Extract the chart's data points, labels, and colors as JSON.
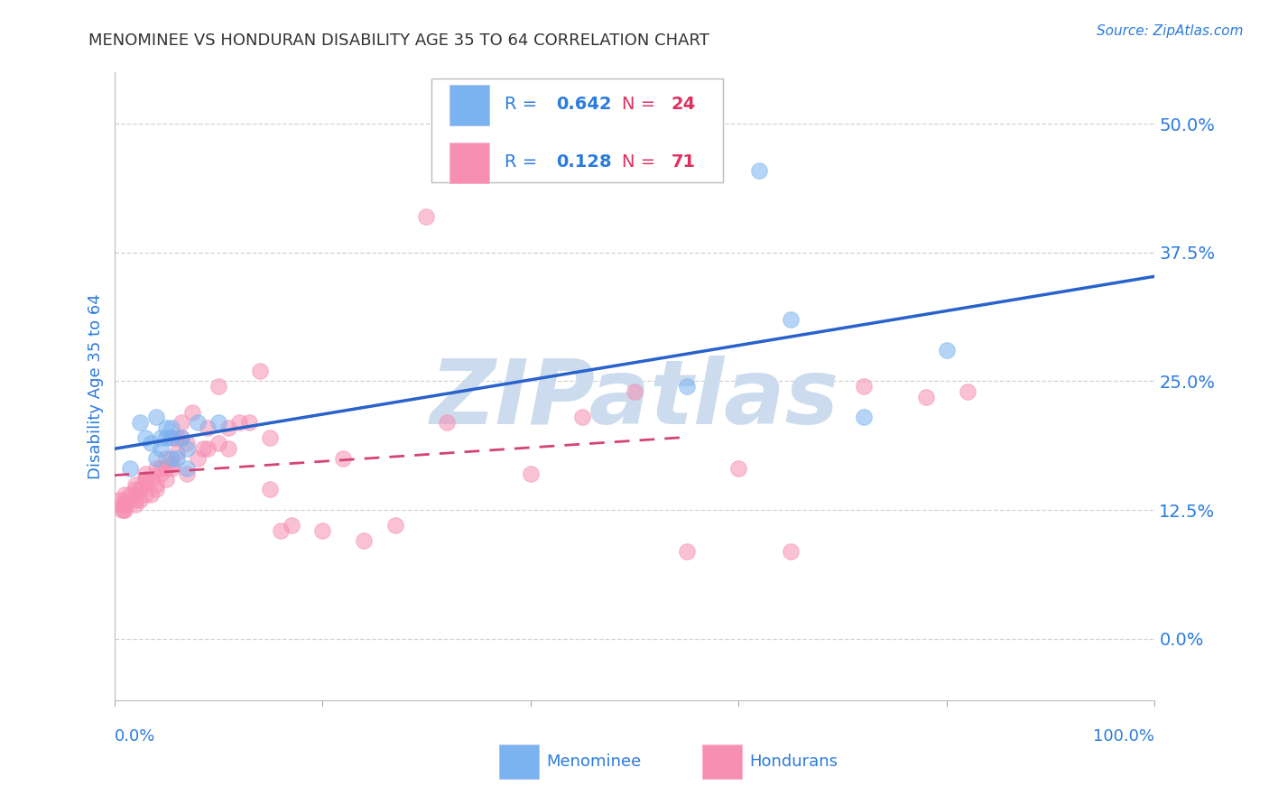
{
  "title": "MENOMINEE VS HONDURAN DISABILITY AGE 35 TO 64 CORRELATION CHART",
  "source": "Source: ZipAtlas.com",
  "ylabel": "Disability Age 35 to 64",
  "y_ticks": [
    0.0,
    0.125,
    0.25,
    0.375,
    0.5
  ],
  "y_tick_labels": [
    "0.0%",
    "12.5%",
    "25.0%",
    "37.5%",
    "50.0%"
  ],
  "x_range": [
    0.0,
    1.0
  ],
  "y_range": [
    -0.06,
    0.55
  ],
  "menominee_R": 0.642,
  "menominee_N": 24,
  "honduran_R": 0.128,
  "honduran_N": 71,
  "menominee_color": "#7ab3ef",
  "honduran_color": "#f78fb3",
  "trendline_menominee_color": "#2962cc",
  "trendline_honduran_color": "#d44472",
  "background_color": "#ffffff",
  "grid_color": "#c8c8c8",
  "watermark_color": "#ccdcee",
  "legend_R_color": "#2b7bde",
  "legend_N_color": "#e03060",
  "menominee_x": [
    0.015,
    0.025,
    0.03,
    0.035,
    0.04,
    0.04,
    0.045,
    0.045,
    0.05,
    0.05,
    0.055,
    0.055,
    0.055,
    0.06,
    0.065,
    0.07,
    0.07,
    0.08,
    0.1,
    0.55,
    0.62,
    0.65,
    0.72,
    0.8
  ],
  "menominee_y": [
    0.165,
    0.21,
    0.195,
    0.19,
    0.215,
    0.175,
    0.195,
    0.185,
    0.195,
    0.205,
    0.175,
    0.195,
    0.205,
    0.175,
    0.195,
    0.185,
    0.165,
    0.21,
    0.21,
    0.245,
    0.455,
    0.31,
    0.215,
    0.28
  ],
  "honduran_x": [
    0.005,
    0.007,
    0.008,
    0.009,
    0.01,
    0.01,
    0.01,
    0.01,
    0.015,
    0.015,
    0.02,
    0.02,
    0.02,
    0.02,
    0.025,
    0.025,
    0.025,
    0.03,
    0.03,
    0.03,
    0.03,
    0.035,
    0.035,
    0.04,
    0.04,
    0.04,
    0.045,
    0.045,
    0.05,
    0.05,
    0.05,
    0.055,
    0.055,
    0.055,
    0.06,
    0.06,
    0.065,
    0.065,
    0.07,
    0.07,
    0.075,
    0.08,
    0.085,
    0.09,
    0.09,
    0.1,
    0.1,
    0.11,
    0.11,
    0.12,
    0.13,
    0.14,
    0.15,
    0.15,
    0.16,
    0.17,
    0.2,
    0.22,
    0.24,
    0.27,
    0.3,
    0.32,
    0.4,
    0.45,
    0.5,
    0.55,
    0.6,
    0.65,
    0.72,
    0.78,
    0.82
  ],
  "honduran_y": [
    0.135,
    0.125,
    0.13,
    0.125,
    0.135,
    0.125,
    0.13,
    0.14,
    0.135,
    0.14,
    0.135,
    0.13,
    0.145,
    0.15,
    0.135,
    0.145,
    0.145,
    0.14,
    0.155,
    0.16,
    0.155,
    0.155,
    0.14,
    0.15,
    0.165,
    0.145,
    0.16,
    0.165,
    0.165,
    0.175,
    0.155,
    0.17,
    0.165,
    0.195,
    0.18,
    0.195,
    0.195,
    0.21,
    0.16,
    0.19,
    0.22,
    0.175,
    0.185,
    0.185,
    0.205,
    0.19,
    0.245,
    0.185,
    0.205,
    0.21,
    0.21,
    0.26,
    0.145,
    0.195,
    0.105,
    0.11,
    0.105,
    0.175,
    0.095,
    0.11,
    0.41,
    0.21,
    0.16,
    0.215,
    0.24,
    0.085,
    0.165,
    0.085,
    0.245,
    0.235,
    0.24
  ]
}
